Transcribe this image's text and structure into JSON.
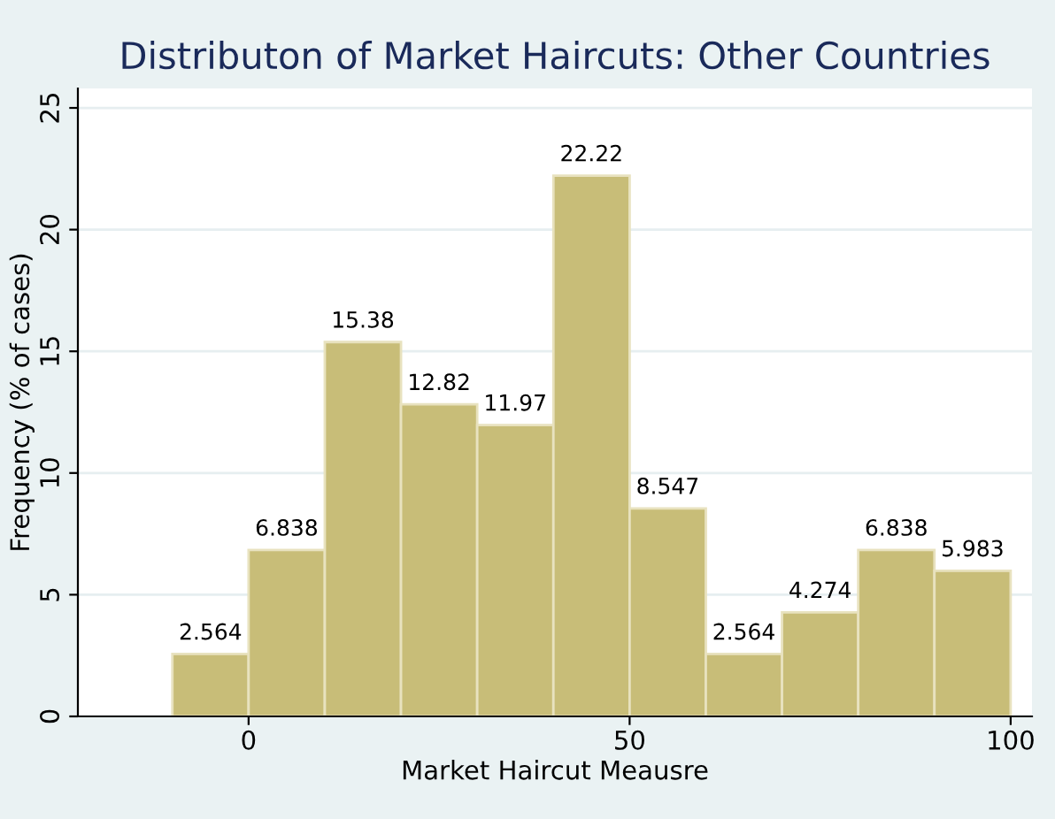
{
  "chart_data": {
    "type": "histogram",
    "title": "Distributon of Market Haircuts: Other Countries",
    "xlabel": "Market Haircut Meausre",
    "ylabel": "Frequency (% of cases)",
    "bins": [
      -10,
      0,
      10,
      20,
      30,
      40,
      50,
      60,
      70,
      80,
      90,
      100
    ],
    "values": [
      2.564,
      6.838,
      15.38,
      12.82,
      11.97,
      22.22,
      8.547,
      2.564,
      4.274,
      6.838,
      5.983
    ],
    "color": "#c8bd78",
    "data_labels": true,
    "grid": "y",
    "xlim": [
      -22.4,
      102.8
    ],
    "xticks": [
      0,
      50,
      100
    ],
    "ylim": [
      0,
      25.8
    ],
    "yticks": [
      0,
      5,
      10,
      15,
      20,
      25
    ]
  }
}
